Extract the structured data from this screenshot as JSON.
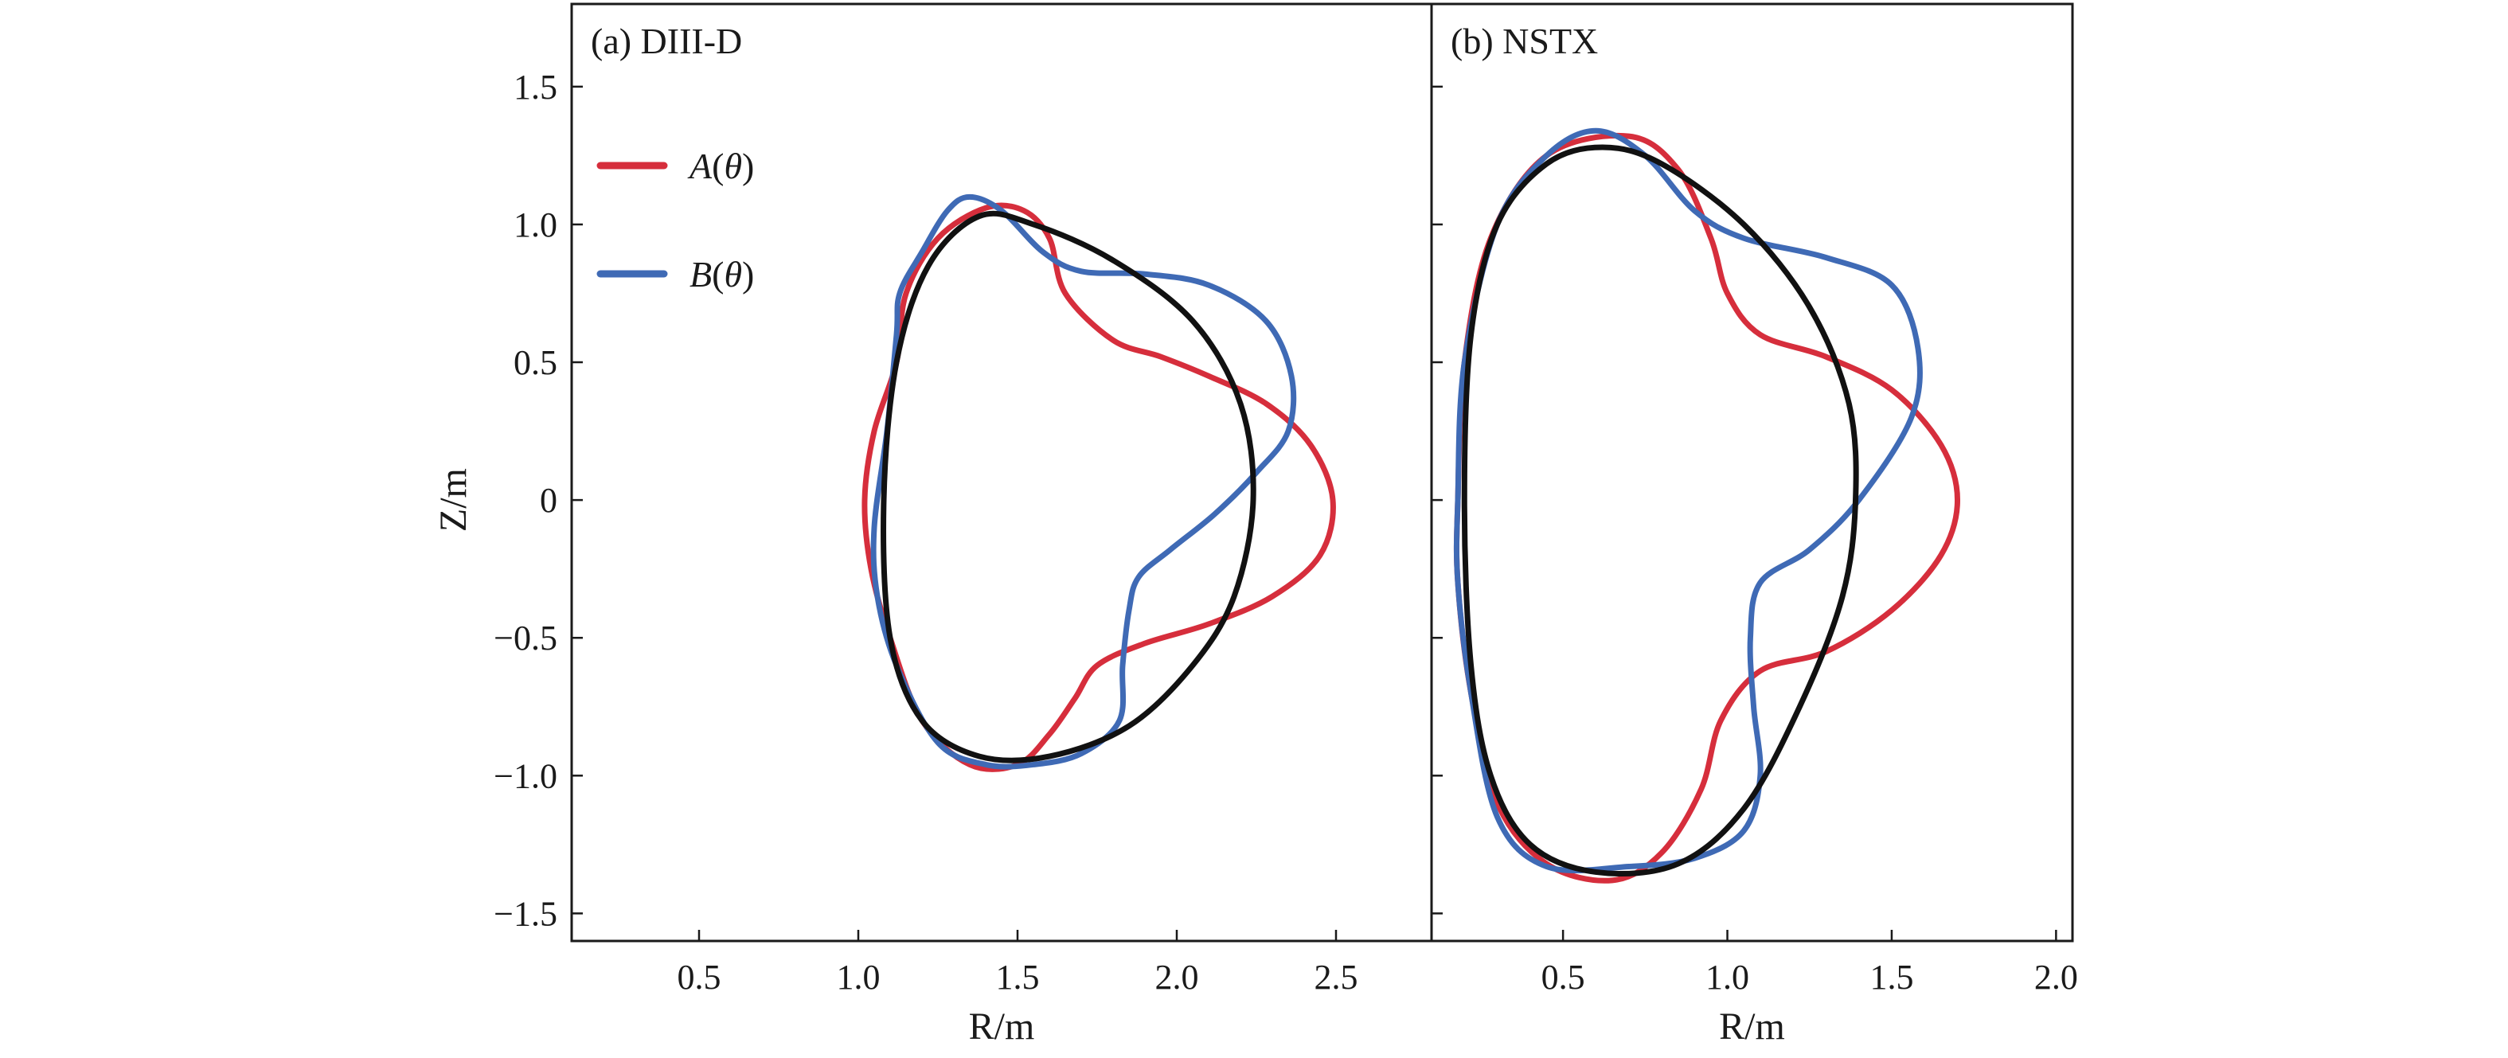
{
  "chart_data": [
    {
      "type": "line",
      "panel_label": "(a) DIII-D",
      "xlabel": "R/m",
      "ylabel": "Z/m",
      "xlim": [
        0.1,
        2.8
      ],
      "ylim": [
        -1.6,
        1.8
      ],
      "xticks": [
        0.5,
        1.0,
        1.5,
        2.0,
        2.5
      ],
      "xtick_labels": [
        "0.5",
        "1.0",
        "1.5",
        "2.0",
        "2.5"
      ],
      "yticks": [
        1.5,
        1.0,
        0.5,
        0,
        -0.5,
        -1.0,
        -1.5
      ],
      "ytick_labels": [
        "1.5",
        "1.0",
        "0.5",
        "0",
        "−0.5",
        "−1.0",
        "−1.5"
      ],
      "legend_position": "upper-left",
      "series": [
        {
          "name": "A(θ)",
          "color": "#d62e3c",
          "points": [
            [
              1.02,
              0.0
            ],
            [
              1.05,
              0.25
            ],
            [
              1.12,
              0.5
            ],
            [
              1.15,
              0.75
            ],
            [
              1.25,
              0.95
            ],
            [
              1.4,
              1.06
            ],
            [
              1.52,
              1.05
            ],
            [
              1.6,
              0.95
            ],
            [
              1.65,
              0.75
            ],
            [
              1.8,
              0.58
            ],
            [
              1.95,
              0.52
            ],
            [
              2.1,
              0.45
            ],
            [
              2.28,
              0.35
            ],
            [
              2.42,
              0.2
            ],
            [
              2.49,
              0.0
            ],
            [
              2.45,
              -0.2
            ],
            [
              2.3,
              -0.35
            ],
            [
              2.1,
              -0.45
            ],
            [
              1.9,
              -0.52
            ],
            [
              1.75,
              -0.6
            ],
            [
              1.68,
              -0.72
            ],
            [
              1.6,
              -0.85
            ],
            [
              1.5,
              -0.96
            ],
            [
              1.35,
              -0.96
            ],
            [
              1.2,
              -0.8
            ],
            [
              1.1,
              -0.5
            ],
            [
              1.04,
              -0.25
            ],
            [
              1.02,
              0.0
            ]
          ]
        },
        {
          "name": "B(θ)",
          "color": "#3f6ab5",
          "points": [
            [
              1.05,
              -0.1
            ],
            [
              1.09,
              0.25
            ],
            [
              1.12,
              0.6
            ],
            [
              1.13,
              0.75
            ],
            [
              1.2,
              0.9
            ],
            [
              1.28,
              1.05
            ],
            [
              1.35,
              1.1
            ],
            [
              1.45,
              1.05
            ],
            [
              1.58,
              0.9
            ],
            [
              1.7,
              0.83
            ],
            [
              1.9,
              0.82
            ],
            [
              2.1,
              0.78
            ],
            [
              2.28,
              0.65
            ],
            [
              2.36,
              0.45
            ],
            [
              2.35,
              0.25
            ],
            [
              2.25,
              0.1
            ],
            [
              2.12,
              -0.05
            ],
            [
              1.98,
              -0.18
            ],
            [
              1.88,
              -0.28
            ],
            [
              1.85,
              -0.4
            ],
            [
              1.83,
              -0.6
            ],
            [
              1.82,
              -0.8
            ],
            [
              1.7,
              -0.92
            ],
            [
              1.55,
              -0.96
            ],
            [
              1.4,
              -0.96
            ],
            [
              1.25,
              -0.88
            ],
            [
              1.12,
              -0.6
            ],
            [
              1.06,
              -0.35
            ],
            [
              1.05,
              -0.1
            ]
          ]
        },
        {
          "name": "",
          "color": "#111111",
          "points": [
            [
              1.08,
              0.0
            ],
            [
              1.12,
              0.5
            ],
            [
              1.22,
              0.85
            ],
            [
              1.38,
              1.03
            ],
            [
              1.55,
              1.0
            ],
            [
              1.8,
              0.87
            ],
            [
              2.05,
              0.65
            ],
            [
              2.2,
              0.35
            ],
            [
              2.24,
              0.0
            ],
            [
              2.18,
              -0.35
            ],
            [
              2.05,
              -0.6
            ],
            [
              1.85,
              -0.82
            ],
            [
              1.6,
              -0.93
            ],
            [
              1.38,
              -0.93
            ],
            [
              1.2,
              -0.8
            ],
            [
              1.1,
              -0.5
            ],
            [
              1.08,
              0.0
            ]
          ]
        }
      ]
    },
    {
      "type": "line",
      "panel_label": "(b) NSTX",
      "xlabel": "R/m",
      "ylabel": "",
      "xlim": [
        0.1,
        2.05
      ],
      "ylim": [
        -1.6,
        1.8
      ],
      "xticks": [
        0.5,
        1.0,
        1.5,
        2.0
      ],
      "xtick_labels": [
        "0.5",
        "1.0",
        "1.5",
        "2.0"
      ],
      "yticks": [
        1.5,
        1.0,
        0.5,
        0,
        -0.5,
        -1.0,
        -1.5
      ],
      "series": [
        {
          "name": "A(θ)",
          "color": "#d62e3c",
          "points": [
            [
              0.18,
              0.0
            ],
            [
              0.2,
              0.5
            ],
            [
              0.28,
              0.95
            ],
            [
              0.45,
              1.25
            ],
            [
              0.7,
              1.32
            ],
            [
              0.85,
              1.2
            ],
            [
              0.95,
              0.95
            ],
            [
              1.0,
              0.75
            ],
            [
              1.1,
              0.6
            ],
            [
              1.3,
              0.52
            ],
            [
              1.5,
              0.4
            ],
            [
              1.65,
              0.2
            ],
            [
              1.7,
              0.0
            ],
            [
              1.65,
              -0.2
            ],
            [
              1.5,
              -0.4
            ],
            [
              1.3,
              -0.55
            ],
            [
              1.1,
              -0.62
            ],
            [
              0.98,
              -0.8
            ],
            [
              0.92,
              -1.05
            ],
            [
              0.8,
              -1.28
            ],
            [
              0.65,
              -1.38
            ],
            [
              0.45,
              -1.32
            ],
            [
              0.3,
              -1.1
            ],
            [
              0.22,
              -0.7
            ],
            [
              0.18,
              -0.3
            ],
            [
              0.18,
              0.0
            ]
          ]
        },
        {
          "name": "B(θ)",
          "color": "#3f6ab5",
          "points": [
            [
              0.18,
              0.0
            ],
            [
              0.2,
              0.5
            ],
            [
              0.3,
              1.0
            ],
            [
              0.45,
              1.25
            ],
            [
              0.6,
              1.34
            ],
            [
              0.75,
              1.25
            ],
            [
              0.9,
              1.05
            ],
            [
              1.05,
              0.95
            ],
            [
              1.3,
              0.88
            ],
            [
              1.5,
              0.78
            ],
            [
              1.58,
              0.55
            ],
            [
              1.56,
              0.3
            ],
            [
              1.4,
              0.0
            ],
            [
              1.25,
              -0.18
            ],
            [
              1.1,
              -0.3
            ],
            [
              1.07,
              -0.5
            ],
            [
              1.08,
              -0.75
            ],
            [
              1.1,
              -1.0
            ],
            [
              1.05,
              -1.2
            ],
            [
              0.9,
              -1.3
            ],
            [
              0.7,
              -1.33
            ],
            [
              0.45,
              -1.33
            ],
            [
              0.3,
              -1.15
            ],
            [
              0.22,
              -0.7
            ],
            [
              0.18,
              -0.3
            ],
            [
              0.18,
              0.0
            ]
          ]
        },
        {
          "name": "",
          "color": "#111111",
          "points": [
            [
              0.2,
              0.0
            ],
            [
              0.22,
              0.6
            ],
            [
              0.3,
              1.0
            ],
            [
              0.45,
              1.22
            ],
            [
              0.62,
              1.28
            ],
            [
              0.8,
              1.22
            ],
            [
              1.05,
              1.0
            ],
            [
              1.25,
              0.7
            ],
            [
              1.37,
              0.35
            ],
            [
              1.39,
              0.0
            ],
            [
              1.35,
              -0.35
            ],
            [
              1.22,
              -0.75
            ],
            [
              1.05,
              -1.12
            ],
            [
              0.85,
              -1.32
            ],
            [
              0.6,
              -1.35
            ],
            [
              0.4,
              -1.25
            ],
            [
              0.28,
              -1.0
            ],
            [
              0.22,
              -0.6
            ],
            [
              0.2,
              0.0
            ]
          ]
        }
      ]
    }
  ]
}
